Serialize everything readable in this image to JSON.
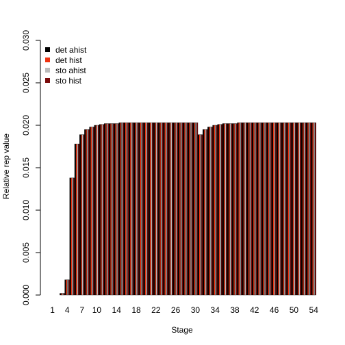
{
  "chart_data": {
    "type": "bar",
    "title": "",
    "xlabel": "Stage",
    "ylabel": "Relative rep value",
    "ylim": [
      0,
      0.03
    ],
    "yticks": [
      "0.000",
      "0.005",
      "0.010",
      "0.015",
      "0.020",
      "0.025",
      "0.030"
    ],
    "xtick_labels": [
      "1",
      "4",
      "7",
      "10",
      "14",
      "18",
      "22",
      "26",
      "30",
      "34",
      "38",
      "42",
      "46",
      "50",
      "54"
    ],
    "categories": [
      "1",
      "2",
      "3",
      "4",
      "5",
      "6",
      "7",
      "8",
      "9",
      "10",
      "11",
      "12",
      "13",
      "14",
      "15",
      "16",
      "17",
      "18",
      "19",
      "20",
      "21",
      "22",
      "23",
      "24",
      "25",
      "26",
      "27",
      "28",
      "29",
      "30",
      "31",
      "32",
      "33",
      "34",
      "35",
      "36",
      "37",
      "38",
      "39",
      "40",
      "41",
      "42",
      "43",
      "44",
      "45",
      "46",
      "47",
      "48",
      "49",
      "50",
      "51",
      "52",
      "53",
      "54"
    ],
    "series": [
      {
        "name": "det ahist",
        "color": "#000000",
        "values": [
          0.0,
          0.0,
          0.0002,
          0.0018,
          0.0138,
          0.0178,
          0.0189,
          0.0195,
          0.0198,
          0.02,
          0.0201,
          0.0202,
          0.0202,
          0.0202,
          0.0203,
          0.0203,
          0.0203,
          0.0203,
          0.0203,
          0.0203,
          0.0203,
          0.0203,
          0.0203,
          0.0203,
          0.0203,
          0.0203,
          0.0203,
          0.0203,
          0.0203,
          0.0203,
          0.0189,
          0.0195,
          0.0198,
          0.02,
          0.0201,
          0.0202,
          0.0202,
          0.0202,
          0.0203,
          0.0203,
          0.0203,
          0.0203,
          0.0203,
          0.0203,
          0.0203,
          0.0203,
          0.0203,
          0.0203,
          0.0203,
          0.0203,
          0.0203,
          0.0203,
          0.0203,
          0.0203
        ]
      },
      {
        "name": "det hist",
        "color": "#ee3311",
        "values": [
          0.0,
          0.0,
          0.0002,
          0.0018,
          0.0138,
          0.0178,
          0.0189,
          0.0195,
          0.0198,
          0.02,
          0.0201,
          0.0202,
          0.0202,
          0.0202,
          0.0203,
          0.0203,
          0.0203,
          0.0203,
          0.0203,
          0.0203,
          0.0203,
          0.0203,
          0.0203,
          0.0203,
          0.0203,
          0.0203,
          0.0203,
          0.0203,
          0.0203,
          0.0203,
          0.0189,
          0.0195,
          0.0198,
          0.02,
          0.0201,
          0.0202,
          0.0202,
          0.0202,
          0.0203,
          0.0203,
          0.0203,
          0.0203,
          0.0203,
          0.0203,
          0.0203,
          0.0203,
          0.0203,
          0.0203,
          0.0203,
          0.0203,
          0.0203,
          0.0203,
          0.0203,
          0.0203
        ]
      },
      {
        "name": "sto ahist",
        "color": "#bbbbbb",
        "values": [
          0.0,
          0.0,
          0.0002,
          0.0018,
          0.0138,
          0.0178,
          0.0189,
          0.0195,
          0.0198,
          0.02,
          0.0201,
          0.0202,
          0.0202,
          0.0202,
          0.0203,
          0.0203,
          0.0203,
          0.0203,
          0.0203,
          0.0203,
          0.0203,
          0.0203,
          0.0203,
          0.0203,
          0.0203,
          0.0203,
          0.0203,
          0.0203,
          0.0203,
          0.0203,
          0.0189,
          0.0195,
          0.0198,
          0.02,
          0.0201,
          0.0202,
          0.0202,
          0.0202,
          0.0203,
          0.0203,
          0.0203,
          0.0203,
          0.0203,
          0.0203,
          0.0203,
          0.0203,
          0.0203,
          0.0203,
          0.0203,
          0.0203,
          0.0203,
          0.0203,
          0.0203,
          0.0203
        ]
      },
      {
        "name": "sto hist",
        "color": "#7a0a0a",
        "values": [
          0.0,
          0.0,
          0.0002,
          0.0018,
          0.0138,
          0.0178,
          0.0189,
          0.0195,
          0.0198,
          0.02,
          0.0201,
          0.0202,
          0.0202,
          0.0202,
          0.0203,
          0.0203,
          0.0203,
          0.0203,
          0.0203,
          0.0203,
          0.0203,
          0.0203,
          0.0203,
          0.0203,
          0.0203,
          0.0203,
          0.0203,
          0.0203,
          0.0203,
          0.0203,
          0.0189,
          0.0195,
          0.0198,
          0.02,
          0.0201,
          0.0202,
          0.0202,
          0.0202,
          0.0203,
          0.0203,
          0.0203,
          0.0203,
          0.0203,
          0.0203,
          0.0203,
          0.0203,
          0.0203,
          0.0203,
          0.0203,
          0.0203,
          0.0203,
          0.0203,
          0.0203,
          0.0203
        ]
      }
    ],
    "legend_position": "top-left",
    "grid": false
  }
}
